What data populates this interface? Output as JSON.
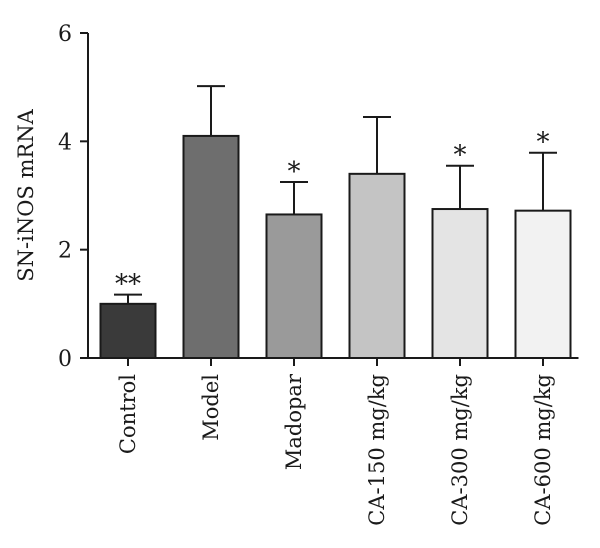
{
  "chart_data": {
    "type": "bar",
    "title": "",
    "xlabel": "",
    "ylabel": "SN-iNOS mRNA",
    "ylim": [
      0,
      6
    ],
    "yticks": [
      0,
      2,
      4,
      6
    ],
    "grid": false,
    "legend": "none",
    "categories": [
      "Control",
      "Model",
      "Madopar",
      "CA-150 mg/kg",
      "CA-300 mg/kg",
      "CA-600 mg/kg"
    ],
    "values": [
      1.0,
      4.1,
      2.65,
      3.4,
      2.75,
      2.72
    ],
    "errors": [
      0.17,
      0.92,
      0.6,
      1.05,
      0.8,
      1.07
    ],
    "significance": [
      "**",
      "",
      "*",
      "",
      "*",
      "*"
    ],
    "bar_colors": [
      "#3a3a3a",
      "#6e6e6e",
      "#9a9a9a",
      "#c4c4c4",
      "#e4e4e4",
      "#f2f2f2"
    ]
  }
}
